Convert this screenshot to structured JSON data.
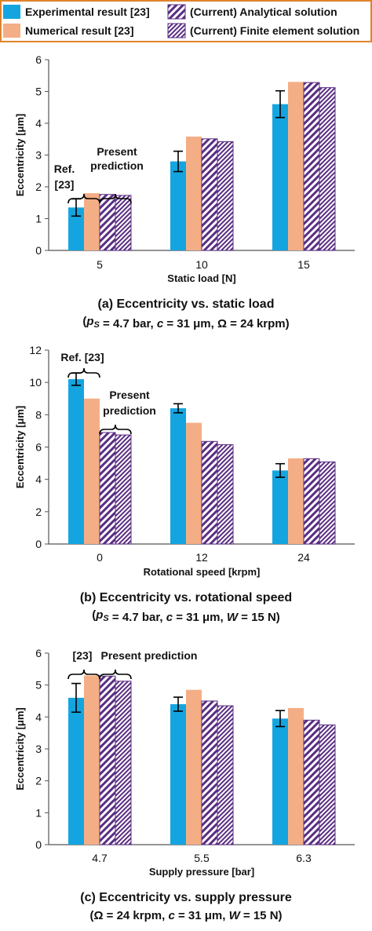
{
  "colors": {
    "experimental": "#14A5E0",
    "numerical": "#F4AE86",
    "current_hatch": "#5A2D82",
    "legend_border": "#E0832B",
    "axis": "#555555"
  },
  "legend": {
    "items": [
      {
        "key": "experimental",
        "label": "Experimental result [23]",
        "style": "solid"
      },
      {
        "key": "numerical",
        "label": "Numerical result [23]",
        "style": "solid"
      },
      {
        "key": "analytical",
        "label": "(Current) Analytical solution",
        "style": "hatch-diagonal"
      },
      {
        "key": "fem",
        "label": "(Current) Finite element solution",
        "style": "hatch-diagonal-dense"
      }
    ]
  },
  "chart_data": [
    {
      "type": "bar",
      "caption_line1": "(a) Eccentricity vs. static load",
      "caption_line2_parts": [
        {
          "t": "(",
          "i": false
        },
        {
          "t": "p",
          "i": true
        },
        {
          "t": "S",
          "i": true,
          "sub": true
        },
        {
          "t": " = 4.7 bar, ",
          "i": false
        },
        {
          "t": "c",
          "i": true
        },
        {
          "t": " = 31 μm, Ω = 24 krpm)",
          "i": false
        }
      ],
      "xlabel": "Static load [N]",
      "ylabel": "Eccentricity [μm]",
      "categories": [
        "5",
        "10",
        "15"
      ],
      "ylim": [
        0,
        6
      ],
      "yticks": [
        0,
        1,
        2,
        3,
        4,
        5,
        6
      ],
      "series": [
        {
          "name": "Experimental result [23]",
          "key": "experimental",
          "values": [
            1.35,
            2.8,
            4.6
          ],
          "error": [
            0.27,
            0.32,
            0.42
          ]
        },
        {
          "name": "Numerical result [23]",
          "key": "numerical",
          "values": [
            1.8,
            3.58,
            5.3
          ]
        },
        {
          "name": "(Current) Analytical solution",
          "key": "analytical",
          "values": [
            1.76,
            3.51,
            5.28
          ]
        },
        {
          "name": "(Current) Finite element solution",
          "key": "fem",
          "values": [
            1.73,
            3.42,
            5.12
          ]
        }
      ],
      "annotations": [
        {
          "text_lines": [
            "Ref.",
            "[23]"
          ]
        },
        {
          "text_lines": [
            "Present",
            "prediction"
          ]
        }
      ]
    },
    {
      "type": "bar",
      "caption_line1": "(b) Eccentricity vs. rotational speed",
      "caption_line2_parts": [
        {
          "t": "(",
          "i": false
        },
        {
          "t": "p",
          "i": true
        },
        {
          "t": "S",
          "i": true,
          "sub": true
        },
        {
          "t": " = 4.7 bar, ",
          "i": false
        },
        {
          "t": "c",
          "i": true
        },
        {
          "t": " = 31 μm, ",
          "i": false
        },
        {
          "t": "W",
          "i": true
        },
        {
          "t": " = 15 N)",
          "i": false
        }
      ],
      "xlabel": "Rotational speed [krpm]",
      "ylabel": "Eccentricity [μm]",
      "categories": [
        "0",
        "12",
        "24"
      ],
      "ylim": [
        0,
        12
      ],
      "yticks": [
        0,
        2,
        4,
        6,
        8,
        10,
        12
      ],
      "series": [
        {
          "name": "Experimental result [23]",
          "key": "experimental",
          "values": [
            10.2,
            8.4,
            4.55
          ],
          "error": [
            0.38,
            0.28,
            0.42
          ]
        },
        {
          "name": "Numerical result [23]",
          "key": "numerical",
          "values": [
            9.0,
            7.5,
            5.3
          ]
        },
        {
          "name": "(Current) Analytical solution",
          "key": "analytical",
          "values": [
            6.9,
            6.35,
            5.28
          ]
        },
        {
          "name": "(Current) Finite element solution",
          "key": "fem",
          "values": [
            6.75,
            6.15,
            5.08
          ]
        }
      ],
      "annotations": [
        {
          "text_lines": [
            "Ref. [23]"
          ]
        },
        {
          "text_lines": [
            "Present",
            "prediction"
          ]
        }
      ]
    },
    {
      "type": "bar",
      "caption_line1": "(c) Eccentricity vs. supply pressure",
      "caption_line2_parts": [
        {
          "t": "(Ω = 24 krpm, ",
          "i": false
        },
        {
          "t": "c",
          "i": true
        },
        {
          "t": " = 31 μm, ",
          "i": false
        },
        {
          "t": "W",
          "i": true
        },
        {
          "t": " = 15 N)",
          "i": false
        }
      ],
      "xlabel": "Supply pressure [bar]",
      "ylabel": "Eccentricity [μm]",
      "categories": [
        "4.7",
        "5.5",
        "6.3"
      ],
      "ylim": [
        0,
        6
      ],
      "yticks": [
        0,
        1,
        2,
        3,
        4,
        5,
        6
      ],
      "series": [
        {
          "name": "Experimental result [23]",
          "key": "experimental",
          "values": [
            4.6,
            4.4,
            3.95
          ],
          "error": [
            0.45,
            0.22,
            0.25
          ]
        },
        {
          "name": "Numerical result [23]",
          "key": "numerical",
          "values": [
            5.3,
            4.85,
            4.28
          ]
        },
        {
          "name": "(Current) Analytical solution",
          "key": "analytical",
          "values": [
            5.28,
            4.5,
            3.9
          ]
        },
        {
          "name": "(Current) Finite element solution",
          "key": "fem",
          "values": [
            5.12,
            4.35,
            3.75
          ]
        }
      ],
      "annotations": [
        {
          "text_lines": [
            "[23]"
          ]
        },
        {
          "text_lines": [
            "Present prediction"
          ]
        }
      ]
    }
  ]
}
